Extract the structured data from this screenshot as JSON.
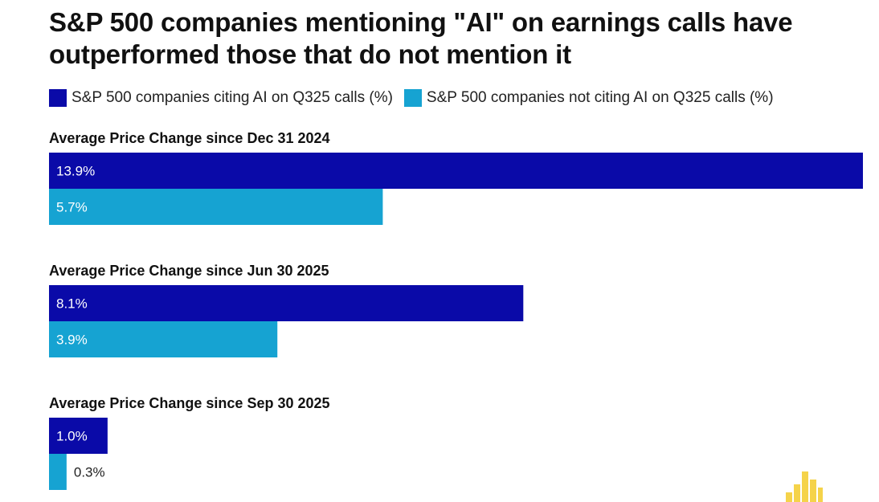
{
  "chart_data": {
    "type": "bar",
    "orientation": "horizontal",
    "title": "S&P 500 companies mentioning \"AI\" on earnings calls have outperformed those that do not mention it",
    "legend_placement": "top-left",
    "grid": false,
    "series": [
      {
        "name": "S&P 500 companies citing AI on Q325 calls (%)",
        "color": "#0a0aa8"
      },
      {
        "name": "S&P 500 companies not citing AI on Q325 calls (%)",
        "color": "#16a3d2"
      }
    ],
    "groups": [
      {
        "label": "Average Price Change since Dec 31 2024",
        "values": [
          13.9,
          5.7
        ],
        "data_labels": [
          "13.9%",
          "5.7%"
        ]
      },
      {
        "label": "Average Price Change since Jun 30 2025",
        "values": [
          8.1,
          3.9
        ],
        "data_labels": [
          "8.1%",
          "3.9%"
        ]
      },
      {
        "label": "Average Price Change since Sep 30 2025",
        "values": [
          1.0,
          0.3
        ],
        "data_labels": [
          "1.0%",
          "0.3%"
        ]
      }
    ],
    "xlim": [
      0,
      13.9
    ]
  },
  "branding": {
    "logo_icon": "bar-chart-logo-icon",
    "logo_color": "#f5d34a"
  }
}
